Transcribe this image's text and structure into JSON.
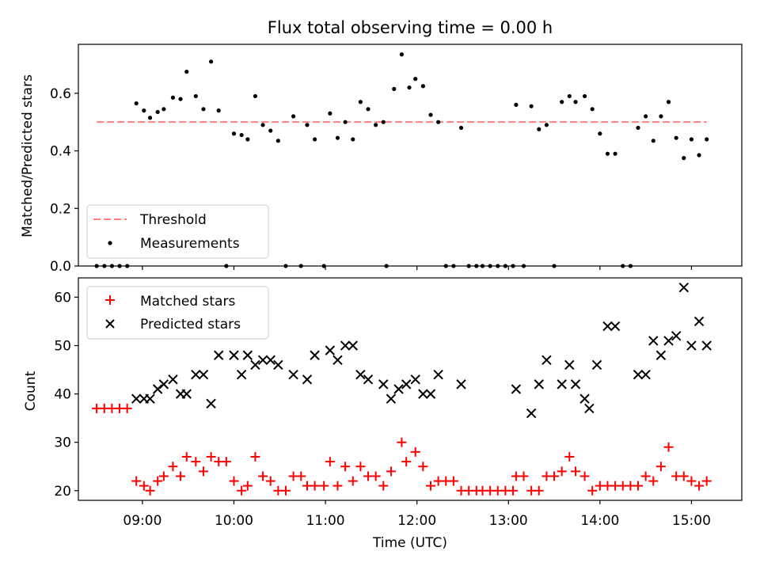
{
  "chart_data": [
    {
      "type": "scatter",
      "title": "Flux total observing time = 0.00 h",
      "ylabel": "Matched/Predicted stars",
      "xlabel": "",
      "xlim": [
        "08:18",
        "15:33"
      ],
      "ylim": [
        0,
        0.77
      ],
      "yticks": [
        "0.0",
        "0.2",
        "0.4",
        "0.6"
      ],
      "ytick_values": [
        0,
        0.2,
        0.4,
        0.6
      ],
      "legend": {
        "position": "lower-left",
        "entries": [
          "Threshold",
          "Measurements"
        ]
      },
      "threshold": {
        "name": "Threshold",
        "y": 0.5,
        "x_start": "08:30",
        "x_end": "15:10",
        "color": "#ff7f7f"
      },
      "series": [
        {
          "name": "Measurements",
          "color": "#000000",
          "points": [
            [
              "08:30",
              0
            ],
            [
              "08:35",
              0
            ],
            [
              "08:40",
              0
            ],
            [
              "08:45",
              0
            ],
            [
              "08:50",
              0
            ],
            [
              "08:56",
              0.565
            ],
            [
              "09:01",
              0.54
            ],
            [
              "09:05",
              0.515
            ],
            [
              "09:10",
              0.535
            ],
            [
              "09:14",
              0.545
            ],
            [
              "09:20",
              0.585
            ],
            [
              "09:25",
              0.58
            ],
            [
              "09:29",
              0.675
            ],
            [
              "09:35",
              0.59
            ],
            [
              "09:40",
              0.545
            ],
            [
              "09:45",
              0.71
            ],
            [
              "09:50",
              0.54
            ],
            [
              "09:55",
              0
            ],
            [
              "10:00",
              0.46
            ],
            [
              "10:05",
              0.455
            ],
            [
              "10:09",
              0.44
            ],
            [
              "10:14",
              0.59
            ],
            [
              "10:19",
              0.49
            ],
            [
              "10:24",
              0.47
            ],
            [
              "10:29",
              0.435
            ],
            [
              "10:34",
              0
            ],
            [
              "10:39",
              0.52
            ],
            [
              "10:44",
              0
            ],
            [
              "10:48",
              0.49
            ],
            [
              "10:53",
              0.44
            ],
            [
              "10:59",
              0
            ],
            [
              "11:03",
              0.53
            ],
            [
              "11:08",
              0.445
            ],
            [
              "11:13",
              0.5
            ],
            [
              "11:18",
              0.44
            ],
            [
              "11:23",
              0.57
            ],
            [
              "11:28",
              0.545
            ],
            [
              "11:33",
              0.49
            ],
            [
              "11:38",
              0.5
            ],
            [
              "11:40",
              0
            ],
            [
              "11:45",
              0.615
            ],
            [
              "11:50",
              0.735
            ],
            [
              "11:55",
              0.62
            ],
            [
              "11:59",
              0.65
            ],
            [
              "12:04",
              0.625
            ],
            [
              "12:09",
              0.525
            ],
            [
              "12:14",
              0.5
            ],
            [
              "12:19",
              0
            ],
            [
              "12:24",
              0
            ],
            [
              "12:29",
              0.48
            ],
            [
              "12:34",
              0
            ],
            [
              "12:39",
              0
            ],
            [
              "12:43",
              0
            ],
            [
              "12:48",
              0
            ],
            [
              "12:53",
              0
            ],
            [
              "12:58",
              0
            ],
            [
              "13:03",
              0
            ],
            [
              "13:05",
              0.56
            ],
            [
              "13:10",
              0
            ],
            [
              "13:15",
              0.555
            ],
            [
              "13:20",
              0.475
            ],
            [
              "13:25",
              0.49
            ],
            [
              "13:30",
              0
            ],
            [
              "13:35",
              0.57
            ],
            [
              "13:40",
              0.59
            ],
            [
              "13:44",
              0.57
            ],
            [
              "13:50",
              0.59
            ],
            [
              "13:55",
              0.545
            ],
            [
              "14:00",
              0.46
            ],
            [
              "14:05",
              0.39
            ],
            [
              "14:10",
              0.39
            ],
            [
              "14:15",
              0
            ],
            [
              "14:20",
              0
            ],
            [
              "14:25",
              0.48
            ],
            [
              "14:30",
              0.52
            ],
            [
              "14:35",
              0.435
            ],
            [
              "14:40",
              0.52
            ],
            [
              "14:45",
              0.57
            ],
            [
              "14:50",
              0.445
            ],
            [
              "14:55",
              0.375
            ],
            [
              "15:00",
              0.44
            ],
            [
              "15:05",
              0.385
            ],
            [
              "15:10",
              0.44
            ]
          ]
        }
      ]
    },
    {
      "type": "scatter",
      "title": "",
      "ylabel": "Count",
      "xlabel": "Time (UTC)",
      "xlim": [
        "08:18",
        "15:33"
      ],
      "ylim": [
        18,
        64
      ],
      "yticks": [
        "20",
        "30",
        "40",
        "50",
        "60"
      ],
      "ytick_values": [
        20,
        30,
        40,
        50,
        60
      ],
      "xticks": [
        "09:00",
        "10:00",
        "11:00",
        "12:00",
        "13:00",
        "14:00",
        "15:00"
      ],
      "legend": {
        "position": "upper-left",
        "entries": [
          "Matched stars",
          "Predicted stars"
        ]
      },
      "series": [
        {
          "name": "Matched stars",
          "marker": "plus",
          "color": "#ff0000",
          "points": [
            [
              "08:30",
              37
            ],
            [
              "08:35",
              37
            ],
            [
              "08:40",
              37
            ],
            [
              "08:45",
              37
            ],
            [
              "08:50",
              37
            ],
            [
              "08:56",
              22
            ],
            [
              "09:01",
              21
            ],
            [
              "09:05",
              20
            ],
            [
              "09:10",
              22
            ],
            [
              "09:14",
              23
            ],
            [
              "09:20",
              25
            ],
            [
              "09:25",
              23
            ],
            [
              "09:29",
              27
            ],
            [
              "09:35",
              26
            ],
            [
              "09:40",
              24
            ],
            [
              "09:45",
              27
            ],
            [
              "09:50",
              26
            ],
            [
              "09:55",
              26
            ],
            [
              "10:00",
              22
            ],
            [
              "10:05",
              20
            ],
            [
              "10:09",
              21
            ],
            [
              "10:14",
              27
            ],
            [
              "10:19",
              23
            ],
            [
              "10:24",
              22
            ],
            [
              "10:29",
              20
            ],
            [
              "10:34",
              20
            ],
            [
              "10:39",
              23
            ],
            [
              "10:44",
              23
            ],
            [
              "10:48",
              21
            ],
            [
              "10:53",
              21
            ],
            [
              "10:59",
              21
            ],
            [
              "11:03",
              26
            ],
            [
              "11:08",
              21
            ],
            [
              "11:13",
              25
            ],
            [
              "11:18",
              22
            ],
            [
              "11:23",
              25
            ],
            [
              "11:28",
              23
            ],
            [
              "11:33",
              23
            ],
            [
              "11:38",
              21
            ],
            [
              "11:43",
              24
            ],
            [
              "11:50",
              30
            ],
            [
              "11:53",
              26
            ],
            [
              "11:59",
              28
            ],
            [
              "12:04",
              25
            ],
            [
              "12:09",
              21
            ],
            [
              "12:14",
              22
            ],
            [
              "12:19",
              22
            ],
            [
              "12:24",
              22
            ],
            [
              "12:29",
              20
            ],
            [
              "12:34",
              20
            ],
            [
              "12:39",
              20
            ],
            [
              "12:43",
              20
            ],
            [
              "12:48",
              20
            ],
            [
              "12:53",
              20
            ],
            [
              "12:58",
              20
            ],
            [
              "13:03",
              20
            ],
            [
              "13:05",
              23
            ],
            [
              "13:10",
              23
            ],
            [
              "13:15",
              20
            ],
            [
              "13:20",
              20
            ],
            [
              "13:25",
              23
            ],
            [
              "13:30",
              23
            ],
            [
              "13:35",
              24
            ],
            [
              "13:40",
              27
            ],
            [
              "13:44",
              24
            ],
            [
              "13:50",
              23
            ],
            [
              "13:55",
              20
            ],
            [
              "14:00",
              21
            ],
            [
              "14:05",
              21
            ],
            [
              "14:10",
              21
            ],
            [
              "14:15",
              21
            ],
            [
              "14:20",
              21
            ],
            [
              "14:25",
              21
            ],
            [
              "14:30",
              23
            ],
            [
              "14:35",
              22
            ],
            [
              "14:40",
              25
            ],
            [
              "14:45",
              29
            ],
            [
              "14:50",
              23
            ],
            [
              "14:55",
              23
            ],
            [
              "15:00",
              22
            ],
            [
              "15:05",
              21
            ],
            [
              "15:10",
              22
            ]
          ]
        },
        {
          "name": "Predicted stars",
          "marker": "x",
          "color": "#000000",
          "points": [
            [
              "08:56",
              39
            ],
            [
              "09:01",
              39
            ],
            [
              "09:05",
              39
            ],
            [
              "09:10",
              41
            ],
            [
              "09:14",
              42
            ],
            [
              "09:20",
              43
            ],
            [
              "09:25",
              40
            ],
            [
              "09:29",
              40
            ],
            [
              "09:35",
              44
            ],
            [
              "09:40",
              44
            ],
            [
              "09:45",
              38
            ],
            [
              "09:50",
              48
            ],
            [
              "10:00",
              48
            ],
            [
              "10:05",
              44
            ],
            [
              "10:09",
              48
            ],
            [
              "10:14",
              46
            ],
            [
              "10:19",
              47
            ],
            [
              "10:24",
              47
            ],
            [
              "10:29",
              46
            ],
            [
              "10:39",
              44
            ],
            [
              "10:48",
              43
            ],
            [
              "10:53",
              48
            ],
            [
              "11:03",
              49
            ],
            [
              "11:08",
              47
            ],
            [
              "11:13",
              50
            ],
            [
              "11:18",
              50
            ],
            [
              "11:23",
              44
            ],
            [
              "11:28",
              43
            ],
            [
              "11:38",
              42
            ],
            [
              "11:43",
              39
            ],
            [
              "11:48",
              41
            ],
            [
              "11:53",
              42
            ],
            [
              "11:59",
              43
            ],
            [
              "12:04",
              40
            ],
            [
              "12:09",
              40
            ],
            [
              "12:14",
              44
            ],
            [
              "12:29",
              42
            ],
            [
              "13:05",
              41
            ],
            [
              "13:15",
              36
            ],
            [
              "13:20",
              42
            ],
            [
              "13:25",
              47
            ],
            [
              "13:35",
              42
            ],
            [
              "13:40",
              46
            ],
            [
              "13:44",
              42
            ],
            [
              "13:50",
              39
            ],
            [
              "13:53",
              37
            ],
            [
              "13:58",
              46
            ],
            [
              "14:05",
              54
            ],
            [
              "14:10",
              54
            ],
            [
              "14:25",
              44
            ],
            [
              "14:30",
              44
            ],
            [
              "14:35",
              51
            ],
            [
              "14:40",
              48
            ],
            [
              "14:45",
              51
            ],
            [
              "14:50",
              52
            ],
            [
              "14:55",
              62
            ],
            [
              "15:00",
              50
            ],
            [
              "15:05",
              55
            ],
            [
              "15:10",
              50
            ]
          ]
        }
      ]
    }
  ]
}
